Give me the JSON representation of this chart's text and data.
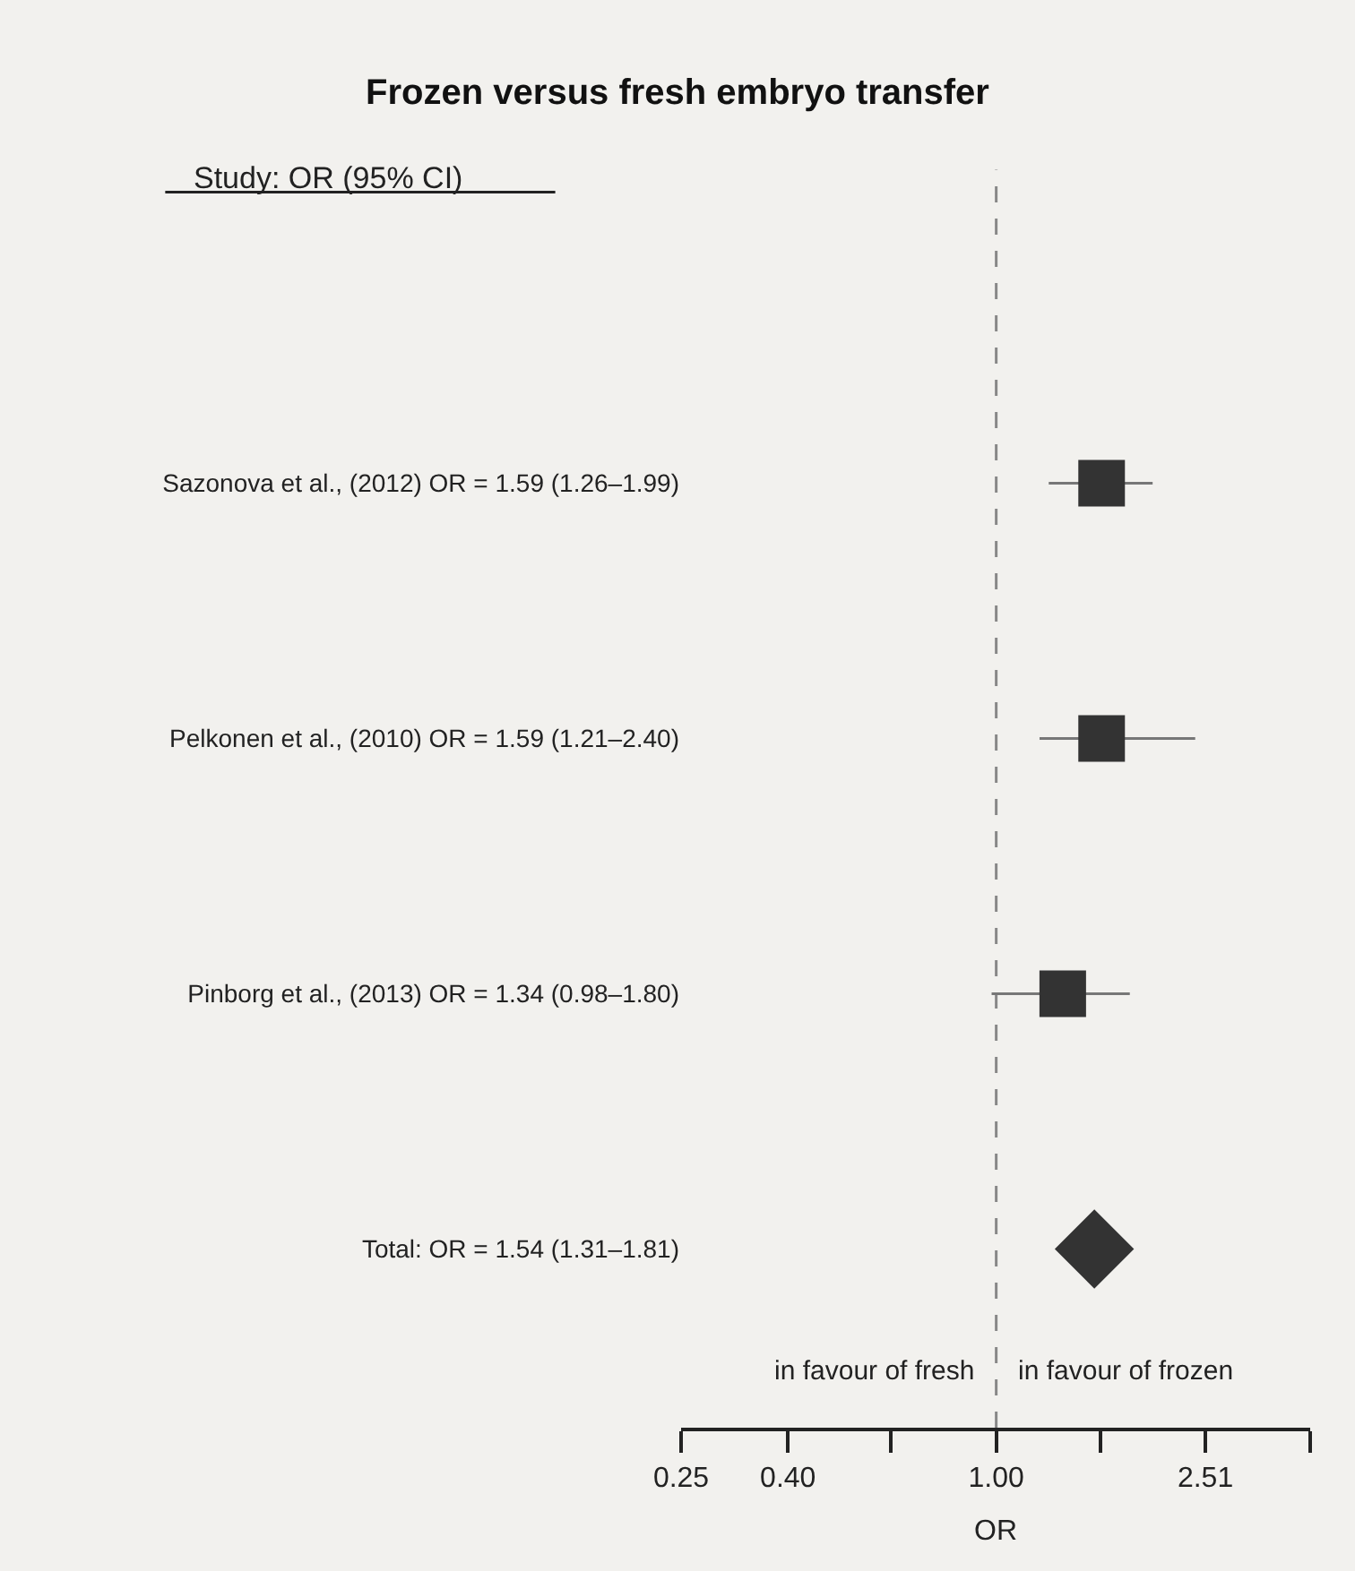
{
  "chart_data": {
    "type": "scatter",
    "orientation": "horizontal",
    "title": "Frozen versus fresh embryo transfer",
    "xlabel": "OR",
    "categories": [
      "Sazonova et al., (2012) OR = 1.59 (1.26–1.99)",
      "Pelkonen et al., (2010) OR = 1.59 (1.21–2.40)",
      "Pinborg et al., (2013) OR = 1.34 (0.98–1.80)",
      "Total: OR = 1.54 (1.31–1.81)"
    ],
    "series": [
      {
        "marker": "square",
        "color": "#333333",
        "values": [
          1.59,
          1.59,
          1.34,
          null
        ],
        "errors": [
          [
            1.26,
            1.99
          ],
          [
            1.21,
            2.4
          ],
          [
            0.98,
            1.8
          ],
          null
        ]
      },
      {
        "marker": "diamond",
        "color": "#333333",
        "values": [
          null,
          null,
          null,
          1.54
        ],
        "errors": [
          null,
          null,
          null,
          [
            1.31,
            1.81
          ]
        ]
      }
    ],
    "log": "x",
    "xlim": [
      0.25,
      3.98
    ],
    "xticks": [
      0.25,
      {
        "value": 0.4,
        "label": "0.40"
      },
      {
        "value": 0.63,
        "label": null
      },
      {
        "value": 1,
        "label": "1.00"
      },
      {
        "value": 1.58,
        "label": null
      },
      2.51,
      {
        "value": 3.98,
        "label": null
      }
    ],
    "ref_lines": [
      {
        "axis": "x",
        "value": 1,
        "line_style": "dashed",
        "color": "#888888"
      }
    ],
    "annotations": [
      "Study: OR (95% CI)",
      "in favour of fresh",
      "in favour of frozen"
    ],
    "grid": false,
    "legend": false
  }
}
